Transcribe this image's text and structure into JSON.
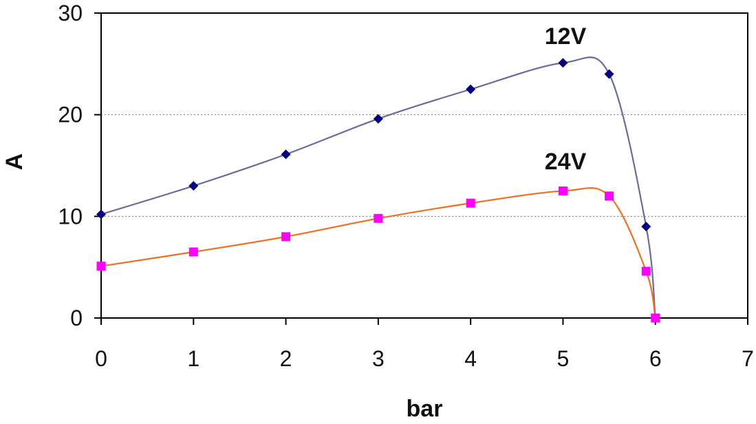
{
  "chart_data": {
    "type": "line",
    "title": "",
    "xlabel": "bar",
    "ylabel": "A",
    "xlim": [
      0,
      7
    ],
    "ylim": [
      0,
      30
    ],
    "xticks": [
      "0",
      "1",
      "2",
      "3",
      "4",
      "5",
      "6",
      "7"
    ],
    "yticks": [
      "0",
      "10",
      "20",
      "30"
    ],
    "grid": "horizontal dotted",
    "smoothed": true,
    "series": [
      {
        "name": "12V",
        "line_color": "#6a6a9c",
        "marker_color": "#000080",
        "marker": "diamond",
        "x": [
          0,
          1,
          2,
          3,
          4,
          5,
          5.5,
          5.9,
          6
        ],
        "y": [
          10.2,
          13.0,
          16.1,
          19.6,
          22.5,
          25.1,
          24.0,
          9.0,
          0
        ]
      },
      {
        "name": "24V",
        "line_color": "#f07020",
        "marker_color": "#ff00ff",
        "marker": "square",
        "x": [
          0,
          1,
          2,
          3,
          4,
          5,
          5.5,
          5.9,
          6
        ],
        "y": [
          5.1,
          6.5,
          8.0,
          9.8,
          11.3,
          12.5,
          12.0,
          4.6,
          0
        ]
      }
    ]
  }
}
